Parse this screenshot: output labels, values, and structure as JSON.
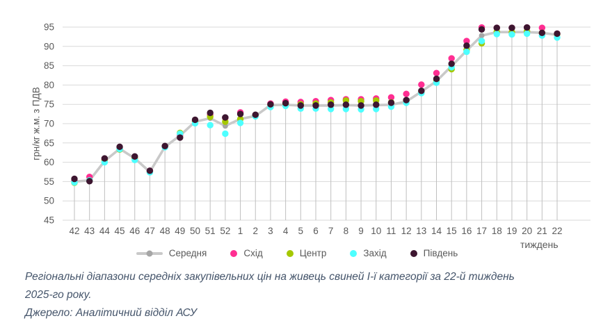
{
  "chart_data": {
    "type": "line",
    "title": "",
    "xlabel": "тиждень",
    "ylabel": "грн/кг ж.м. з ПДВ",
    "ylim": [
      45,
      95
    ],
    "y_ticks": [
      45,
      50,
      55,
      60,
      65,
      70,
      75,
      80,
      85,
      90,
      95
    ],
    "grid": "horizontal gridlines + vertical drop lines per category",
    "legend_position": "bottom",
    "categories": [
      "42",
      "43",
      "44",
      "45",
      "46",
      "47",
      "48",
      "49",
      "50",
      "51",
      "52",
      "1",
      "2",
      "3",
      "4",
      "5",
      "6",
      "7",
      "8",
      "9",
      "10",
      "11",
      "12",
      "13",
      "14",
      "15",
      "16",
      "17",
      "18",
      "19",
      "20",
      "21",
      "22"
    ],
    "series": [
      {
        "name": "Середня",
        "type": "line",
        "color": "#C9C9C9",
        "marker_color": "#A6A6A6",
        "values": [
          55.0,
          55.3,
          60.3,
          63.5,
          61.0,
          57.5,
          64.0,
          66.9,
          70.5,
          71.4,
          69.4,
          71.2,
          72.0,
          74.8,
          74.9,
          74.7,
          74.7,
          74.7,
          74.8,
          74.7,
          74.8,
          74.9,
          75.7,
          78.3,
          81.0,
          84.9,
          88.9,
          92.8,
          93.7,
          93.7,
          93.7,
          93.5,
          93.0
        ]
      },
      {
        "name": "Схід",
        "type": "scatter",
        "color": "#FF2E92",
        "values": [
          55.2,
          56.2,
          60.8,
          63.6,
          61.1,
          57.8,
          64.1,
          67.0,
          70.7,
          72.3,
          71.5,
          72.9,
          72.2,
          75.2,
          75.7,
          75.6,
          75.8,
          76.1,
          76.3,
          76.3,
          76.5,
          76.8,
          77.7,
          80.1,
          83.1,
          86.9,
          91.4,
          94.9,
          94.8,
          94.8,
          94.9,
          94.8,
          93.3
        ]
      },
      {
        "name": "Центр",
        "type": "scatter",
        "color": "#A5C800",
        "values": [
          54.7,
          55.3,
          60.5,
          63.3,
          61.0,
          57.5,
          64.0,
          67.6,
          70.5,
          71.8,
          70.5,
          71.2,
          72.0,
          74.8,
          75.0,
          75.0,
          75.2,
          75.5,
          76.0,
          75.8,
          76.0,
          75.5,
          76.0,
          78.3,
          81.0,
          84.1,
          89.1,
          90.8,
          93.8,
          93.7,
          93.9,
          93.5,
          93.2
        ]
      },
      {
        "name": "Захід",
        "type": "scatter",
        "color": "#4DFFFF",
        "values": [
          54.8,
          55.3,
          60.0,
          63.4,
          60.6,
          57.4,
          63.9,
          67.4,
          70.1,
          69.6,
          67.4,
          70.2,
          71.9,
          74.3,
          74.6,
          73.9,
          73.9,
          73.8,
          73.8,
          73.7,
          73.8,
          74.4,
          75.4,
          77.9,
          80.6,
          84.6,
          88.6,
          91.4,
          93.2,
          93.1,
          93.3,
          92.8,
          92.3
        ]
      },
      {
        "name": "Південь",
        "type": "scatter",
        "color": "#3D1630",
        "values": [
          55.7,
          55.1,
          61.0,
          64.0,
          61.5,
          57.8,
          64.2,
          66.4,
          71.0,
          72.8,
          71.6,
          72.5,
          72.3,
          75.0,
          75.3,
          74.7,
          74.7,
          74.9,
          74.9,
          74.7,
          74.9,
          75.4,
          76.1,
          78.5,
          81.6,
          85.5,
          90.2,
          94.4,
          94.8,
          94.8,
          94.9,
          93.5,
          93.3
        ]
      }
    ],
    "colors": {
      "gridline": "#D9D9D9",
      "drop_line": "#BFBFBF",
      "tick_label": "#595959",
      "caption_text": "#44546A"
    }
  },
  "caption": {
    "line1": "Регіональні діапазони середніх закупівельних цін на живець свиней І-ї категорії за 22-й тиждень",
    "line2": "2025-го року.",
    "source": "Джерело: Аналітичний відділ АСУ"
  }
}
